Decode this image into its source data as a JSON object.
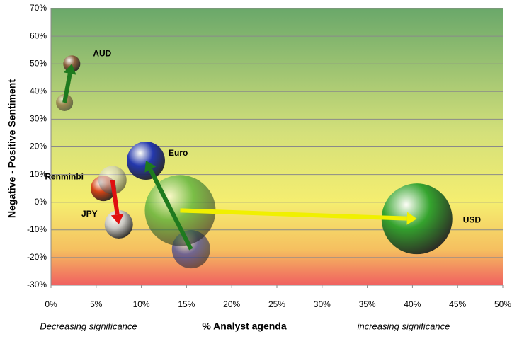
{
  "chart_data": {
    "type": "scatter",
    "ylabel": "Negative  - Positive Sentiment",
    "xlabel": "% Analyst agenda",
    "x_left_note": "Decreasing significance",
    "x_right_note": "increasing significance",
    "xlim": [
      0,
      50
    ],
    "xticks": [
      {
        "value": 0,
        "label": "0%"
      },
      {
        "value": 5,
        "label": "5%"
      },
      {
        "value": 10,
        "label": "10%"
      },
      {
        "value": 15,
        "label": "15%"
      },
      {
        "value": 20,
        "label": "20%"
      },
      {
        "value": 25,
        "label": "25%"
      },
      {
        "value": 30,
        "label": "30%"
      },
      {
        "value": 35,
        "label": "35%"
      },
      {
        "value": 40,
        "label": "40%"
      },
      {
        "value": 45,
        "label": "45%"
      },
      {
        "value": 50,
        "label": "50%"
      }
    ],
    "ylim": [
      -30,
      70
    ],
    "yticks": [
      {
        "value": -30,
        "label": "-30%"
      },
      {
        "value": -20,
        "label": "-20%"
      },
      {
        "value": -10,
        "label": "-10%"
      },
      {
        "value": 0,
        "label": "0%"
      },
      {
        "value": 10,
        "label": "10%"
      },
      {
        "value": 20,
        "label": "20%"
      },
      {
        "value": 30,
        "label": "30%"
      },
      {
        "value": 40,
        "label": "40%"
      },
      {
        "value": 50,
        "label": "50%"
      },
      {
        "value": 60,
        "label": "60%"
      },
      {
        "value": 70,
        "label": "70%"
      }
    ],
    "grid": true,
    "series": [
      {
        "name": "AUD",
        "color": "#1e7a1e",
        "bubble_color": "#8a5a3a",
        "x": [
          1.5,
          2.3
        ],
        "values": [
          36,
          50
        ]
      },
      {
        "name": "Euro",
        "color": "#1e7a1e",
        "bubble_color": "#1a2fb0",
        "x": [
          15.5,
          10.5
        ],
        "values": [
          -17,
          15
        ]
      },
      {
        "name": "Renminbi",
        "color": "#e01010",
        "bubble_color": "#d23a10",
        "x": [
          5.8
        ],
        "values": [
          5
        ]
      },
      {
        "name": "JPY",
        "color": "#e01010",
        "bubble_color": "#c8c8c8",
        "x": [
          6.8,
          7.5
        ],
        "values": [
          8,
          -8
        ]
      },
      {
        "name": "USD",
        "color": "#f0f000",
        "bubble_color": "#2aa02a",
        "x": [
          14.3,
          40.5
        ],
        "values": [
          -3,
          -6
        ]
      }
    ]
  }
}
